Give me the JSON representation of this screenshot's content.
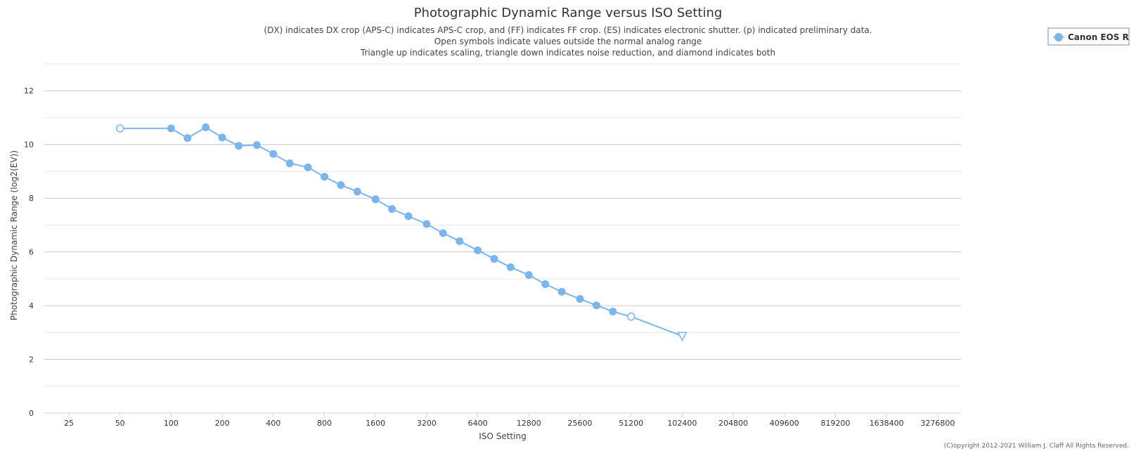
{
  "chart_data": {
    "type": "line",
    "title": "Photographic Dynamic Range versus ISO Setting",
    "subtitle": [
      "(DX) indicates DX crop (APS-C) indicates APS-C crop, and (FF) indicates FF crop. (ES) indicates electronic shutter. (p) indicated preliminary data.",
      "Open symbols indicate values outside the normal analog range",
      "Triangle up indicates scaling, triangle down indicates noise reduction, and diamond indicates both"
    ],
    "xlabel": "ISO Setting",
    "ylabel": "Photographic Dynamic Range (log2(EV))",
    "x_scale": "log2",
    "x_ticks": [
      "25",
      "50",
      "100",
      "200",
      "400",
      "800",
      "1600",
      "3200",
      "6400",
      "12800",
      "25600",
      "51200",
      "102400",
      "204800",
      "409600",
      "819200",
      "1638400",
      "3276800"
    ],
    "y_ticks": [
      0,
      2,
      4,
      6,
      8,
      10,
      12
    ],
    "ylim": [
      0,
      13
    ],
    "grid": true,
    "legend_position": "top-right",
    "series": [
      {
        "name": "Canon EOS R",
        "color": "#7cb5ec",
        "points": [
          {
            "x": 50,
            "y": 10.6,
            "marker": "open-circle"
          },
          {
            "x": 100,
            "y": 10.6,
            "marker": "circle"
          },
          {
            "x": 125,
            "y": 10.24,
            "marker": "circle"
          },
          {
            "x": 160,
            "y": 10.64,
            "marker": "circle"
          },
          {
            "x": 200,
            "y": 10.26,
            "marker": "circle"
          },
          {
            "x": 250,
            "y": 9.95,
            "marker": "circle"
          },
          {
            "x": 320,
            "y": 9.98,
            "marker": "circle"
          },
          {
            "x": 400,
            "y": 9.65,
            "marker": "circle"
          },
          {
            "x": 500,
            "y": 9.3,
            "marker": "circle"
          },
          {
            "x": 640,
            "y": 9.15,
            "marker": "circle"
          },
          {
            "x": 800,
            "y": 8.8,
            "marker": "circle"
          },
          {
            "x": 1000,
            "y": 8.49,
            "marker": "circle"
          },
          {
            "x": 1250,
            "y": 8.25,
            "marker": "circle"
          },
          {
            "x": 1600,
            "y": 7.96,
            "marker": "circle"
          },
          {
            "x": 2000,
            "y": 7.6,
            "marker": "circle"
          },
          {
            "x": 2500,
            "y": 7.33,
            "marker": "circle"
          },
          {
            "x": 3200,
            "y": 7.04,
            "marker": "circle"
          },
          {
            "x": 4000,
            "y": 6.7,
            "marker": "circle"
          },
          {
            "x": 5000,
            "y": 6.4,
            "marker": "circle"
          },
          {
            "x": 6400,
            "y": 6.06,
            "marker": "circle"
          },
          {
            "x": 8000,
            "y": 5.74,
            "marker": "circle"
          },
          {
            "x": 10000,
            "y": 5.43,
            "marker": "circle"
          },
          {
            "x": 12800,
            "y": 5.14,
            "marker": "circle"
          },
          {
            "x": 16000,
            "y": 4.8,
            "marker": "circle"
          },
          {
            "x": 20000,
            "y": 4.52,
            "marker": "circle"
          },
          {
            "x": 25600,
            "y": 4.25,
            "marker": "circle"
          },
          {
            "x": 32000,
            "y": 4.01,
            "marker": "circle"
          },
          {
            "x": 40000,
            "y": 3.78,
            "marker": "circle"
          },
          {
            "x": 51200,
            "y": 3.59,
            "marker": "open-circle"
          },
          {
            "x": 102400,
            "y": 2.87,
            "marker": "open-triangle-down"
          }
        ]
      }
    ]
  },
  "copyright": "(C)opyright 2012-2021 William J. Claff All Rights Reserved."
}
